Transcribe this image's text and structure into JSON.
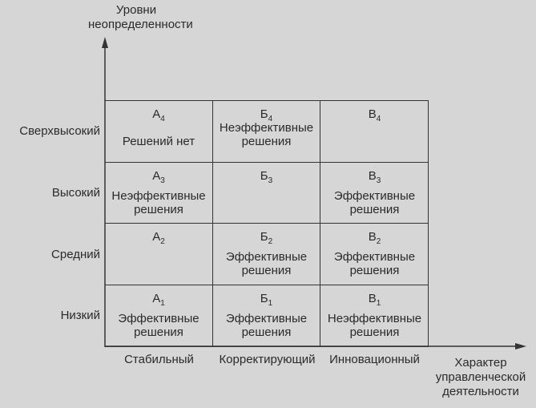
{
  "y_axis_title": [
    "Уровни",
    "неопределенности"
  ],
  "x_axis_title": [
    "Характер",
    "управленческой",
    "деятельности"
  ],
  "y_levels": [
    "Сверхвысокий",
    "Высокий",
    "Средний",
    "Низкий"
  ],
  "x_categories": [
    "Стабильный",
    "Корректирующий",
    "Инновационный"
  ],
  "cells": [
    [
      {
        "letter": "А",
        "index": "4",
        "text": "Решений нет"
      },
      {
        "letter": "Б",
        "index": "4",
        "text": "Неэффективные решения"
      },
      {
        "letter": "В",
        "index": "4",
        "text": ""
      }
    ],
    [
      {
        "letter": "А",
        "index": "3",
        "text": "Неэффективные решения"
      },
      {
        "letter": "Б",
        "index": "3",
        "text": ""
      },
      {
        "letter": "В",
        "index": "3",
        "text": "Эффективные решения"
      }
    ],
    [
      {
        "letter": "А",
        "index": "2",
        "text": ""
      },
      {
        "letter": "Б",
        "index": "2",
        "text": "Эффективные решения"
      },
      {
        "letter": "В",
        "index": "2",
        "text": "Эффективные решения"
      }
    ],
    [
      {
        "letter": "А",
        "index": "1",
        "text": "Эффективные решения"
      },
      {
        "letter": "Б",
        "index": "1",
        "text": "Эффективные решения"
      },
      {
        "letter": "В",
        "index": "1",
        "text": "Неэффективные решения"
      }
    ]
  ]
}
